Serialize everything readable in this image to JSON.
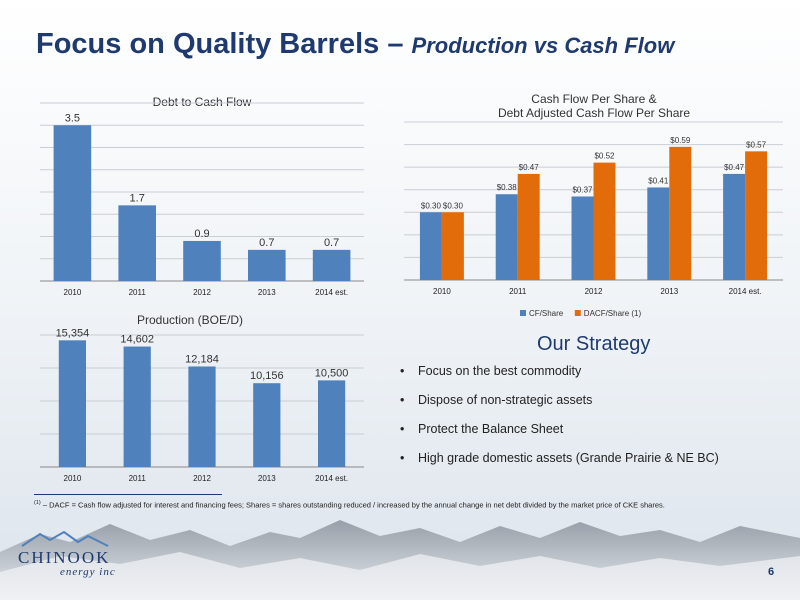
{
  "slide": {
    "title_main": "Focus on Quality Barrels –",
    "title_sub": "Production vs Cash Flow",
    "page_number": "6",
    "logo_name": "CHINOOK",
    "logo_sub": "energy inc"
  },
  "strategy": {
    "title": "Our Strategy",
    "items": [
      "Focus on the best commodity",
      "Dispose of non-strategic assets",
      "Protect the Balance Sheet",
      "High grade domestic assets (Grande Prairie & NE BC)"
    ]
  },
  "footnote": {
    "marker": "(1)",
    "text": " – DACF = Cash flow adjusted for interest and financing fees;  Shares = shares outstanding reduced / increased by the annual change in net debt divided by the market price of CKE shares."
  },
  "colors": {
    "blue": "#4f81bd",
    "orange": "#e36c0a",
    "title": "#1f3a6e"
  },
  "chart_data": [
    {
      "id": "debt",
      "type": "bar",
      "title": "Debt to Cash Flow",
      "categories": [
        "2010",
        "2011",
        "2012",
        "2013",
        "2014 est."
      ],
      "values": [
        3.5,
        1.7,
        0.9,
        0.7,
        0.7
      ],
      "labels": [
        "3.5",
        "1.7",
        "0.9",
        "0.7",
        "0.7"
      ],
      "ylim": [
        0,
        4
      ],
      "grid": true
    },
    {
      "id": "cfps",
      "type": "bar",
      "title": [
        "Cash Flow Per Share &",
        "Debt Adjusted Cash Flow Per Share"
      ],
      "categories": [
        "2010",
        "2011",
        "2012",
        "2013",
        "2014 est."
      ],
      "series": [
        {
          "name": "CF/Share",
          "values": [
            0.3,
            0.38,
            0.37,
            0.41,
            0.47
          ],
          "labels": [
            "$0.30",
            "$0.38",
            "$0.37",
            "$0.41",
            "$0.47"
          ],
          "color": "#4f81bd"
        },
        {
          "name": "DACF/Share (1)",
          "values": [
            0.3,
            0.47,
            0.52,
            0.59,
            0.57
          ],
          "labels": [
            "$0.30",
            "$0.47",
            "$0.52",
            "$0.59",
            "$0.57"
          ],
          "color": "#e36c0a"
        }
      ],
      "ylim": [
        0,
        0.7
      ],
      "grid": true,
      "legend": "bottom"
    },
    {
      "id": "prod",
      "type": "bar",
      "title": "Production (BOE/D)",
      "categories": [
        "2010",
        "2011",
        "2012",
        "2013",
        "2014 est."
      ],
      "values": [
        15354,
        14602,
        12184,
        10156,
        10500
      ],
      "labels": [
        "15,354",
        "14,602",
        "12,184",
        "10,156",
        "10,500"
      ],
      "ylim": [
        0,
        16000
      ],
      "grid": true
    }
  ]
}
